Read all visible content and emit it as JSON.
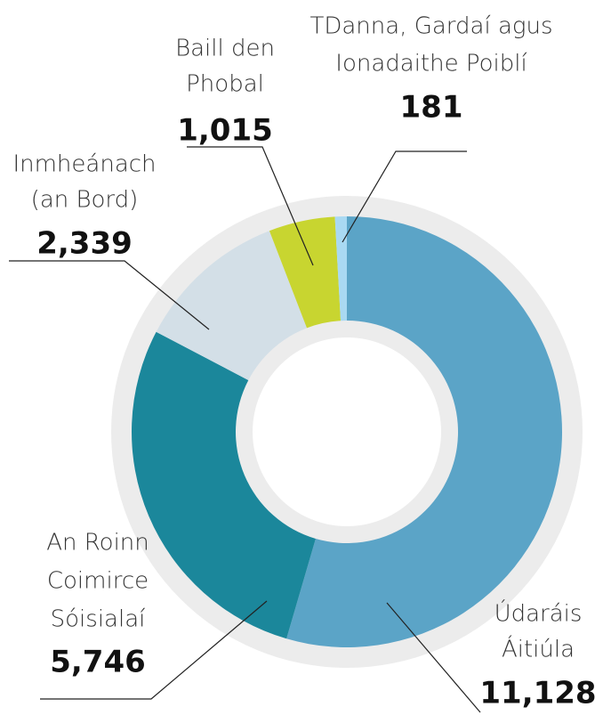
{
  "chart_data": {
    "type": "donut",
    "categories": [
      [
        "Údaráis",
        "Áitiúla"
      ],
      [
        "An Roinn",
        "Coimirce",
        "Sóisialaí"
      ],
      [
        "Inmheánach",
        "(an Bord)"
      ],
      [
        "Baill den",
        "Phobal"
      ],
      [
        "TDanna, Gardaí agus",
        "Ionadaithe Poiblí"
      ]
    ],
    "values": [
      11128,
      5746,
      2339,
      1015,
      181
    ],
    "value_labels": [
      "11,128",
      "5,746",
      "2,339",
      "1,015",
      "181"
    ],
    "colors": [
      "#5ba4c7",
      "#1b879b",
      "#d3dfe7",
      "#c8d530",
      "#a9d9f2"
    ]
  }
}
